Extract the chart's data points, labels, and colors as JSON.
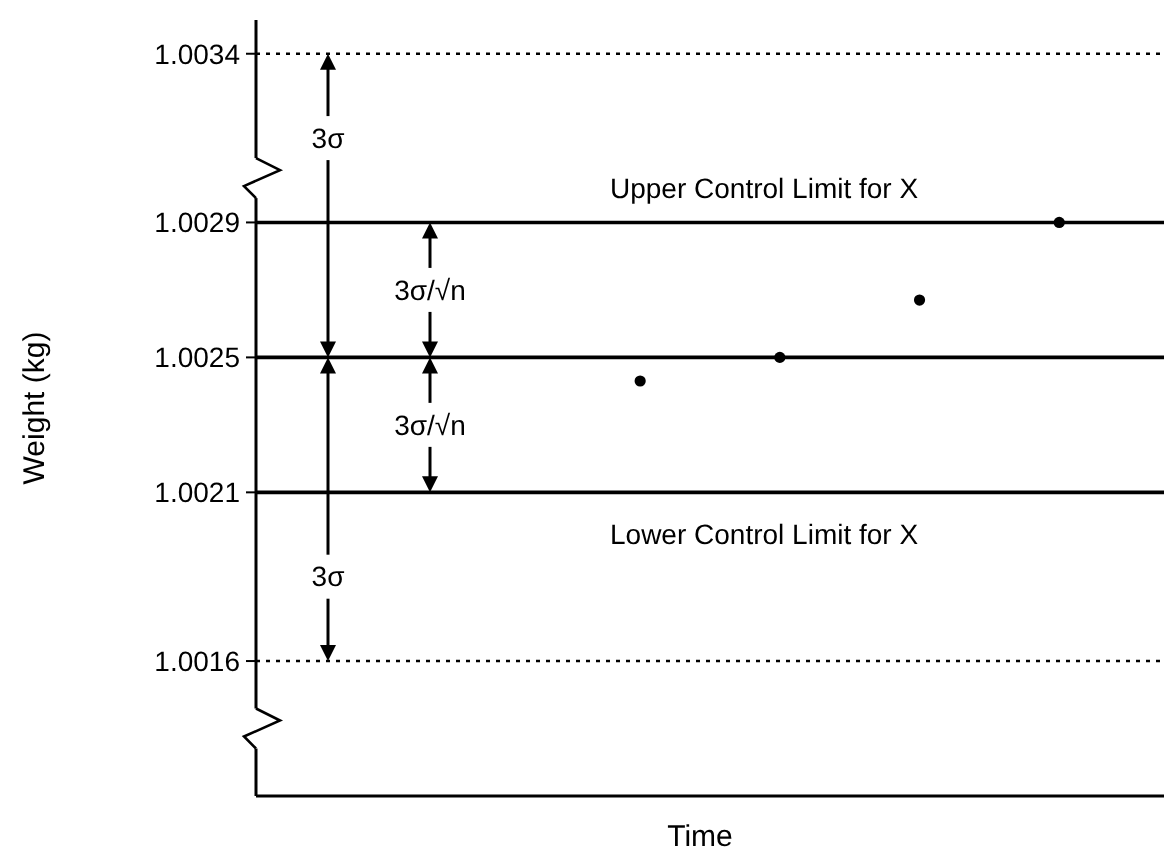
{
  "chart_data": {
    "type": "scatter",
    "xlabel": "Time",
    "ylabel": "Weight (kg)",
    "categories": [
      null,
      null,
      null,
      null,
      null,
      null,
      null,
      null,
      null,
      null,
      null,
      null,
      null
    ],
    "ylim": [
      1.0012,
      1.0035
    ],
    "yticks": [
      1.0016,
      1.0021,
      1.0025,
      1.0029,
      1.0034
    ],
    "tick_labels": "y",
    "marker": "circle",
    "series": [
      {
        "color": "#000000",
        "values": [
          null,
          null,
          null,
          null,
          null,
          1.00243,
          null,
          1.0025,
          null,
          1.00267,
          null,
          1.0029,
          null
        ]
      }
    ],
    "ref_lines": [
      {
        "axis": "y",
        "value": 1.0034,
        "line_style": "dotted"
      },
      {
        "axis": "y",
        "value": 1.0029,
        "label": "Upper Control Limit for X",
        "line_style": "solid"
      },
      {
        "axis": "y",
        "value": 1.0025,
        "line_style": "solid"
      },
      {
        "axis": "y",
        "value": 1.0021,
        "label": "Lower  Control Limit for X",
        "line_style": "solid"
      },
      {
        "axis": "y",
        "value": 1.0016,
        "line_style": "dotted"
      }
    ],
    "annotations": [
      "3σ",
      "3σ/√n",
      "3σ/√n",
      "3σ"
    ]
  }
}
